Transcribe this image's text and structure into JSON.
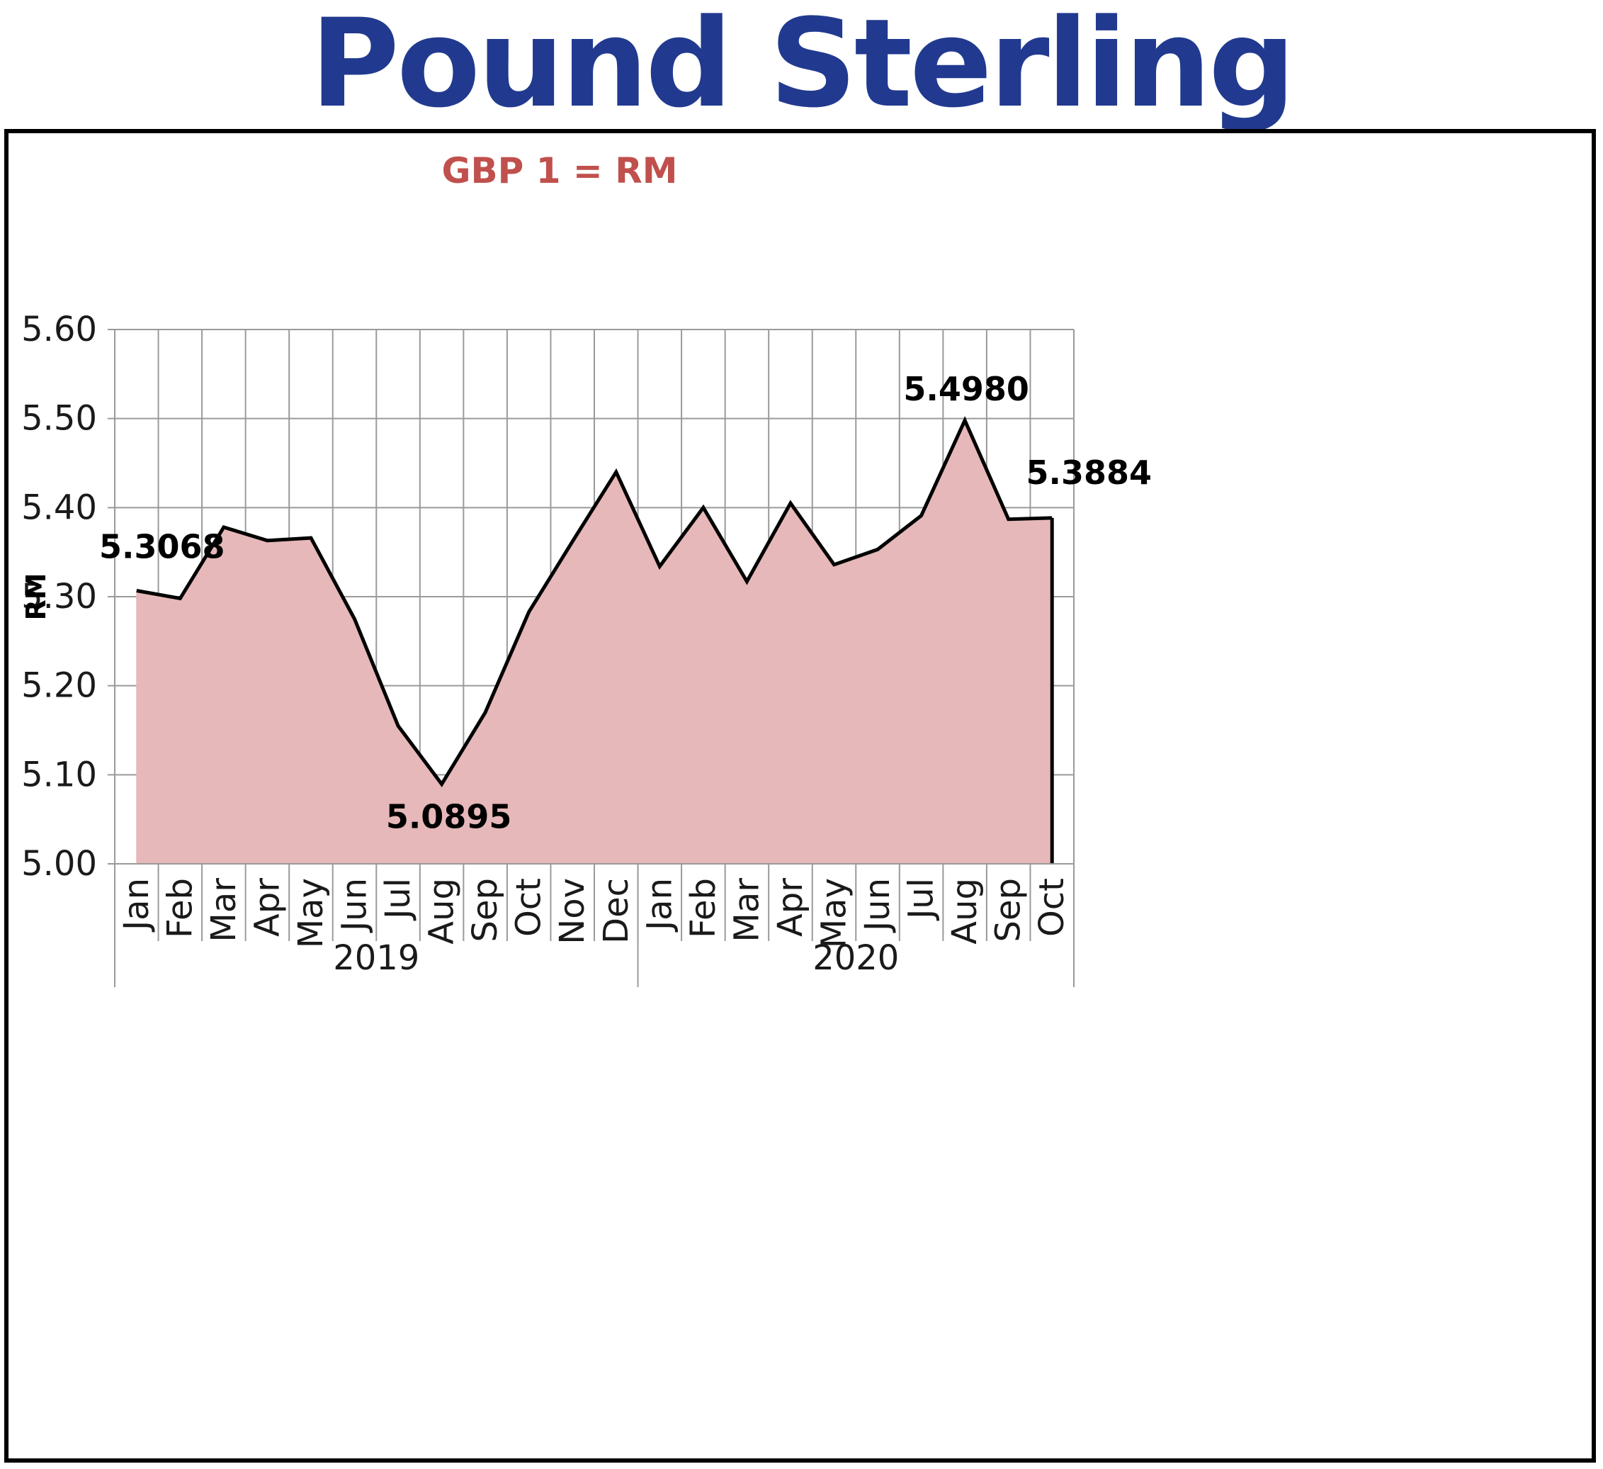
{
  "page_title": "Pound Sterling",
  "chart_data": {
    "type": "area",
    "title": "GBP 1 = RM",
    "ylabel": "RM",
    "xlabel": "",
    "ylim": [
      5.0,
      5.6
    ],
    "yticks": [
      "5.00",
      "5.10",
      "5.20",
      "5.30",
      "5.40",
      "5.50",
      "5.60"
    ],
    "grid": true,
    "categories": [
      "Jan",
      "Feb",
      "Mar",
      "Apr",
      "May",
      "Jun",
      "Jul",
      "Aug",
      "Sep",
      "Oct",
      "Nov",
      "Dec",
      "Jan",
      "Feb",
      "Mar",
      "Apr",
      "May",
      "Jun",
      "Jul",
      "Aug",
      "Sep",
      "Oct"
    ],
    "groups": [
      {
        "label": "2019",
        "start": 0,
        "count": 12
      },
      {
        "label": "2020",
        "start": 12,
        "count": 10
      }
    ],
    "series": [
      {
        "values": [
          5.3068,
          5.298,
          5.378,
          5.363,
          5.366,
          5.275,
          5.155,
          5.0895,
          5.17,
          5.283,
          5.362,
          5.44,
          5.334,
          5.4,
          5.317,
          5.405,
          5.336,
          5.353,
          5.391,
          5.498,
          5.387,
          5.3884
        ],
        "color": "#000000",
        "fill": "#e6b8b9"
      }
    ],
    "annotations": [
      {
        "index": 0,
        "text": "5.3068"
      },
      {
        "index": 7,
        "text": "5.0895"
      },
      {
        "index": 19,
        "text": "5.4980"
      },
      {
        "index": 21,
        "text": "5.3884"
      }
    ]
  }
}
